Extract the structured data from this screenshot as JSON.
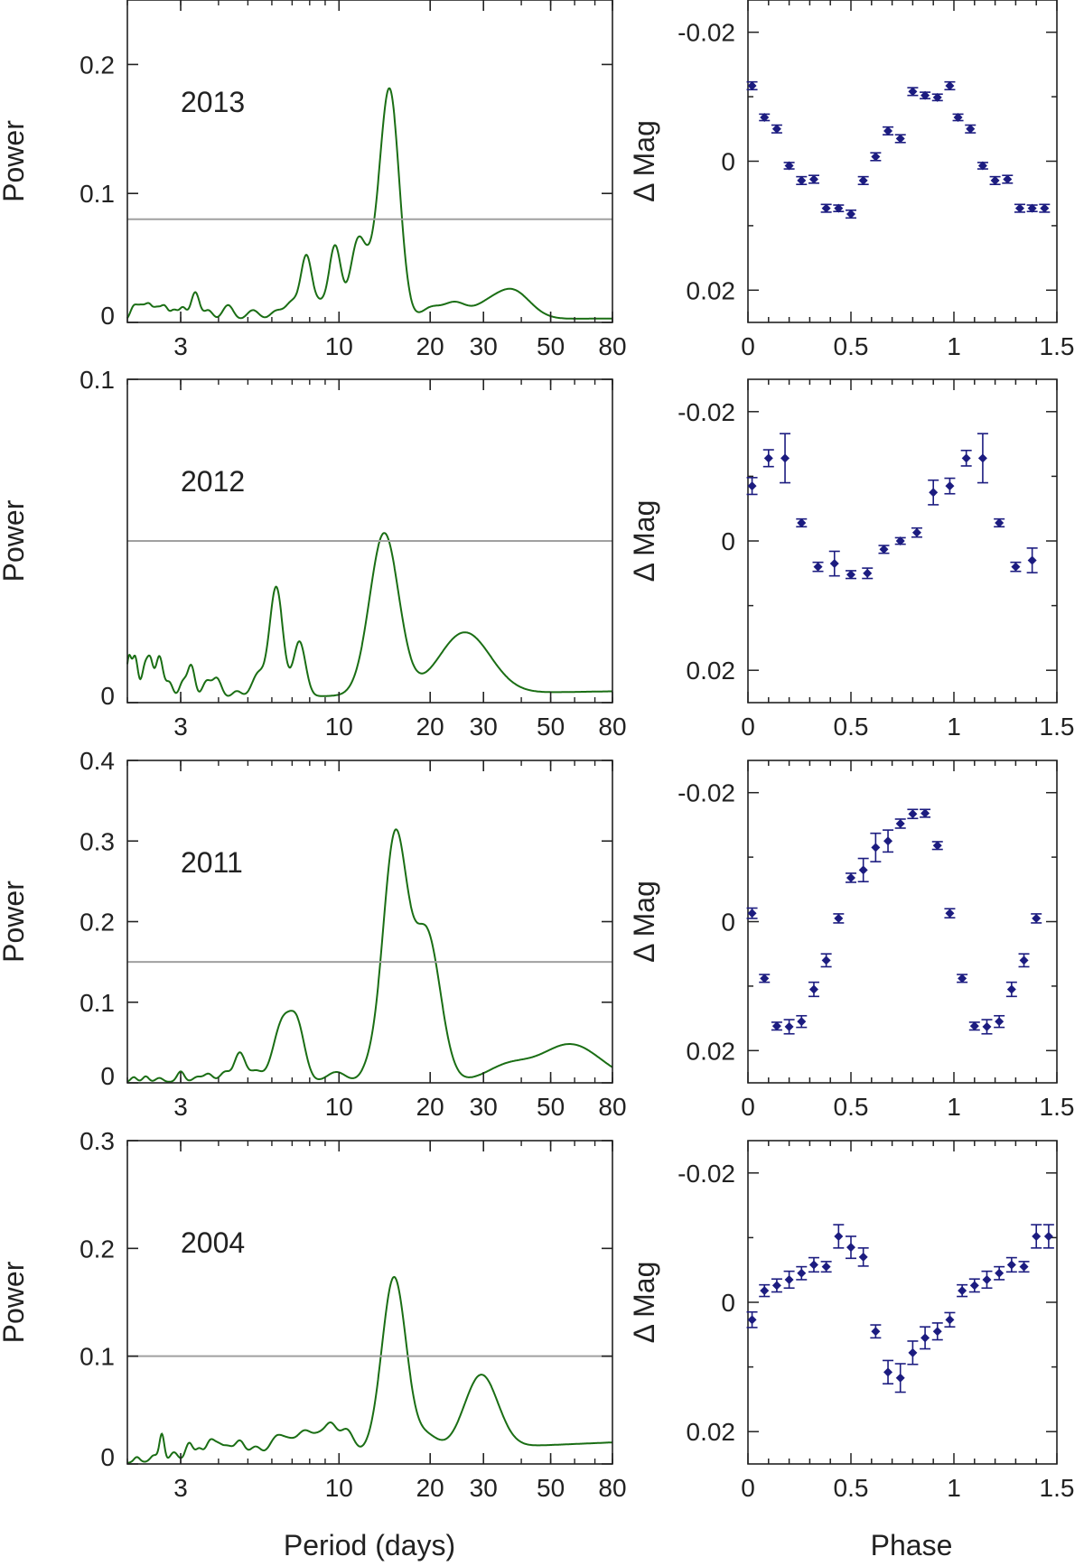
{
  "figure": {
    "common_xlabel_left": "Period (days)",
    "common_xlabel_right": "Phase",
    "colors": {
      "periodogram": "#1a6e14",
      "threshold": "#a0a0a0",
      "points": "#1c1c80",
      "axes": "#222222"
    }
  },
  "chart_data": [
    {
      "type": "line",
      "title": "2013",
      "xlabel": "",
      "ylabel": "Power",
      "xscale": "log",
      "xlim": [
        2,
        80
      ],
      "ylim": [
        0,
        0.25
      ],
      "xticks": [
        3,
        10,
        20,
        30,
        50,
        80
      ],
      "yticks": [
        0,
        0.1,
        0.2
      ],
      "ytick_labels": [
        "0",
        "0.1",
        "0.2"
      ],
      "threshold": 0.08,
      "peaks": [
        {
          "p": 2.1,
          "a": 0.011,
          "w": 0.012
        },
        {
          "p": 2.22,
          "a": 0.01,
          "w": 0.012
        },
        {
          "p": 2.35,
          "a": 0.012,
          "w": 0.012
        },
        {
          "p": 2.5,
          "a": 0.009,
          "w": 0.012
        },
        {
          "p": 2.65,
          "a": 0.011,
          "w": 0.012
        },
        {
          "p": 2.85,
          "a": 0.008,
          "w": 0.012
        },
        {
          "p": 3.05,
          "a": 0.01,
          "w": 0.012
        },
        {
          "p": 3.35,
          "a": 0.022,
          "w": 0.014
        },
        {
          "p": 3.7,
          "a": 0.008,
          "w": 0.015
        },
        {
          "p": 4.3,
          "a": 0.012,
          "w": 0.018
        },
        {
          "p": 5.2,
          "a": 0.008,
          "w": 0.02
        },
        {
          "p": 6.2,
          "a": 0.007,
          "w": 0.02
        },
        {
          "p": 7.0,
          "a": 0.014,
          "w": 0.022
        },
        {
          "p": 7.8,
          "a": 0.048,
          "w": 0.018
        },
        {
          "p": 8.6,
          "a": 0.012,
          "w": 0.02
        },
        {
          "p": 9.7,
          "a": 0.057,
          "w": 0.02
        },
        {
          "p": 11.5,
          "a": 0.055,
          "w": 0.025
        },
        {
          "p": 12.8,
          "a": 0.025,
          "w": 0.03
        },
        {
          "p": 14.7,
          "a": 0.176,
          "w": 0.032
        },
        {
          "p": 20.0,
          "a": 0.008,
          "w": 0.03
        },
        {
          "p": 24.0,
          "a": 0.013,
          "w": 0.04
        },
        {
          "p": 30.0,
          "a": 0.006,
          "w": 0.04
        },
        {
          "p": 37.0,
          "a": 0.023,
          "w": 0.06
        }
      ],
      "baseline": [
        0.001,
        0.003
      ],
      "phase_panel": {
        "type": "scatter",
        "xlabel": "",
        "ylabel": "Δ Mag",
        "xlim": [
          0,
          1.5
        ],
        "ylim": [
          0.025,
          -0.025
        ],
        "xticks": [
          0,
          0.5,
          1,
          1.5
        ],
        "yticks": [
          -0.02,
          0,
          0.02
        ],
        "ytick_labels": [
          "-0.02",
          "0",
          "0.02"
        ],
        "x": [
          0.02,
          0.08,
          0.14,
          0.2,
          0.26,
          0.32,
          0.38,
          0.44,
          0.5,
          0.56,
          0.62,
          0.68,
          0.74,
          0.8,
          0.86,
          0.92,
          0.98,
          1.02,
          1.08,
          1.14,
          1.2,
          1.26,
          1.32,
          1.38,
          1.44
        ],
        "y": [
          -0.0117,
          -0.0068,
          -0.005,
          0.0007,
          0.003,
          0.0028,
          0.0073,
          0.0073,
          0.0082,
          0.003,
          -0.0007,
          -0.0047,
          -0.0035,
          -0.0108,
          -0.0102,
          -0.0099,
          -0.0117,
          -0.0068,
          -0.005,
          0.0007,
          0.003,
          0.0028,
          0.0073,
          0.0073,
          0.0073
        ],
        "err": [
          0.0006,
          0.0005,
          0.0006,
          0.0005,
          0.0006,
          0.0006,
          0.0006,
          0.0005,
          0.0006,
          0.0006,
          0.0006,
          0.0006,
          0.0006,
          0.0006,
          0.0005,
          0.0005,
          0.0006,
          0.0005,
          0.0006,
          0.0005,
          0.0006,
          0.0006,
          0.0006,
          0.0005,
          0.0006
        ]
      }
    },
    {
      "type": "line",
      "title": "2012",
      "xlabel": "",
      "ylabel": "Power",
      "xscale": "log",
      "xlim": [
        2,
        80
      ],
      "ylim": [
        0,
        0.1
      ],
      "xticks": [
        3,
        10,
        20,
        30,
        50,
        80
      ],
      "yticks": [
        0,
        0.1
      ],
      "ytick_labels": [
        "0",
        "0.1"
      ],
      "threshold": 0.05,
      "peaks": [
        {
          "p": 2.02,
          "a": 0.012,
          "w": 0.008
        },
        {
          "p": 2.12,
          "a": 0.013,
          "w": 0.01
        },
        {
          "p": 2.28,
          "a": 0.009,
          "w": 0.01
        },
        {
          "p": 2.38,
          "a": 0.011,
          "w": 0.01
        },
        {
          "p": 2.55,
          "a": 0.013,
          "w": 0.012
        },
        {
          "p": 2.75,
          "a": 0.005,
          "w": 0.012
        },
        {
          "p": 3.05,
          "a": 0.005,
          "w": 0.012
        },
        {
          "p": 3.25,
          "a": 0.01,
          "w": 0.012
        },
        {
          "p": 3.65,
          "a": 0.005,
          "w": 0.014
        },
        {
          "p": 3.95,
          "a": 0.006,
          "w": 0.015
        },
        {
          "p": 4.6,
          "a": 0.002,
          "w": 0.015
        },
        {
          "p": 5.4,
          "a": 0.007,
          "w": 0.02
        },
        {
          "p": 6.2,
          "a": 0.034,
          "w": 0.022
        },
        {
          "p": 7.4,
          "a": 0.017,
          "w": 0.02
        },
        {
          "p": 14.1,
          "a": 0.05,
          "w": 0.048
        },
        {
          "p": 26.0,
          "a": 0.019,
          "w": 0.085
        }
      ],
      "baseline": [
        0.001,
        0.0035
      ],
      "phase_panel": {
        "type": "scatter",
        "xlabel": "",
        "ylabel": "Δ Mag",
        "xlim": [
          0,
          1.5
        ],
        "ylim": [
          0.025,
          -0.025
        ],
        "xticks": [
          0,
          0.5,
          1,
          1.5
        ],
        "yticks": [
          -0.02,
          0,
          0.02
        ],
        "ytick_labels": [
          "-0.02",
          "0",
          "0.02"
        ],
        "x": [
          0.02,
          0.1,
          0.18,
          0.26,
          0.34,
          0.42,
          0.5,
          0.58,
          0.66,
          0.74,
          0.82,
          0.9,
          0.98,
          1.06,
          1.14,
          1.22,
          1.3,
          1.38
        ],
        "y": [
          -0.0085,
          -0.0128,
          -0.0128,
          -0.0028,
          0.004,
          0.0035,
          0.0052,
          0.005,
          0.0013,
          0.0,
          -0.0013,
          -0.0075,
          -0.0085,
          -0.0128,
          -0.0128,
          -0.0028,
          0.004,
          0.003
        ],
        "err": [
          0.0013,
          0.0013,
          0.0038,
          0.0006,
          0.0007,
          0.0019,
          0.0006,
          0.0008,
          0.0006,
          0.0005,
          0.0007,
          0.0019,
          0.0012,
          0.0012,
          0.0038,
          0.0006,
          0.0007,
          0.0019
        ]
      }
    },
    {
      "type": "line",
      "title": "2011",
      "xlabel": "",
      "ylabel": "Power",
      "xscale": "log",
      "xlim": [
        2,
        80
      ],
      "ylim": [
        0,
        0.4
      ],
      "xticks": [
        3,
        10,
        20,
        30,
        50,
        80
      ],
      "yticks": [
        0,
        0.1,
        0.2,
        0.3,
        0.4
      ],
      "ytick_labels": [
        "0",
        "0.1",
        "0.2",
        "0.3",
        "0.4"
      ],
      "threshold": 0.15,
      "peaks": [
        {
          "p": 2.1,
          "a": 0.006,
          "w": 0.01
        },
        {
          "p": 2.3,
          "a": 0.007,
          "w": 0.01
        },
        {
          "p": 2.55,
          "a": 0.005,
          "w": 0.012
        },
        {
          "p": 3.0,
          "a": 0.013,
          "w": 0.012
        },
        {
          "p": 3.4,
          "a": 0.006,
          "w": 0.014
        },
        {
          "p": 3.7,
          "a": 0.01,
          "w": 0.015
        },
        {
          "p": 4.2,
          "a": 0.012,
          "w": 0.016
        },
        {
          "p": 4.7,
          "a": 0.036,
          "w": 0.018
        },
        {
          "p": 5.3,
          "a": 0.013,
          "w": 0.02
        },
        {
          "p": 6.5,
          "a": 0.072,
          "w": 0.03
        },
        {
          "p": 7.3,
          "a": 0.062,
          "w": 0.025
        },
        {
          "p": 9.8,
          "a": 0.012,
          "w": 0.03
        },
        {
          "p": 12.5,
          "a": 0.01,
          "w": 0.025
        },
        {
          "p": 15.3,
          "a": 0.3,
          "w": 0.04
        },
        {
          "p": 19.5,
          "a": 0.182,
          "w": 0.045
        },
        {
          "p": 36.0,
          "a": 0.018,
          "w": 0.07
        },
        {
          "p": 58.0,
          "a": 0.046,
          "w": 0.1
        }
      ],
      "baseline": [
        0.001,
        0.002
      ],
      "phase_panel": {
        "type": "scatter",
        "xlabel": "",
        "ylabel": "Δ Mag",
        "xlim": [
          0,
          1.5
        ],
        "ylim": [
          0.025,
          -0.025
        ],
        "xticks": [
          0,
          0.5,
          1,
          1.5
        ],
        "yticks": [
          -0.02,
          0,
          0.02
        ],
        "ytick_labels": [
          "-0.02",
          "0",
          "0.02"
        ],
        "x": [
          0.02,
          0.08,
          0.14,
          0.2,
          0.26,
          0.32,
          0.38,
          0.44,
          0.5,
          0.56,
          0.62,
          0.68,
          0.74,
          0.8,
          0.86,
          0.92,
          0.98,
          1.04,
          1.1,
          1.16,
          1.22,
          1.28,
          1.34,
          1.4
        ],
        "y": [
          -0.0013,
          0.0088,
          0.0162,
          0.0163,
          0.0155,
          0.0105,
          0.006,
          -0.0005,
          -0.0068,
          -0.008,
          -0.0115,
          -0.0125,
          -0.0152,
          -0.0167,
          -0.0168,
          -0.0118,
          -0.0013,
          0.0088,
          0.0162,
          0.0163,
          0.0155,
          0.0105,
          0.006,
          -0.0005
        ],
        "err": [
          0.0008,
          0.0006,
          0.0006,
          0.0011,
          0.0009,
          0.0011,
          0.001,
          0.0007,
          0.0007,
          0.0018,
          0.0022,
          0.0017,
          0.0007,
          0.0007,
          0.0006,
          0.0006,
          0.0007,
          0.0006,
          0.0006,
          0.0011,
          0.0009,
          0.0011,
          0.001,
          0.0007
        ]
      }
    },
    {
      "type": "line",
      "title": "2004",
      "xlabel": "Period (days)",
      "ylabel": "Power",
      "xscale": "log",
      "xlim": [
        2,
        80
      ],
      "ylim": [
        0,
        0.3
      ],
      "xticks": [
        3,
        10,
        20,
        30,
        50,
        80
      ],
      "yticks": [
        0,
        0.1,
        0.2,
        0.3
      ],
      "ytick_labels": [
        "0",
        "0.1",
        "0.2",
        "0.3"
      ],
      "threshold": 0.1,
      "peaks": [
        {
          "p": 2.15,
          "a": 0.005,
          "w": 0.01
        },
        {
          "p": 2.45,
          "a": 0.006,
          "w": 0.012
        },
        {
          "p": 2.6,
          "a": 0.025,
          "w": 0.008
        },
        {
          "p": 2.85,
          "a": 0.008,
          "w": 0.012
        },
        {
          "p": 3.2,
          "a": 0.016,
          "w": 0.012
        },
        {
          "p": 3.45,
          "a": 0.01,
          "w": 0.012
        },
        {
          "p": 3.75,
          "a": 0.016,
          "w": 0.014
        },
        {
          "p": 4.0,
          "a": 0.012,
          "w": 0.015
        },
        {
          "p": 4.3,
          "a": 0.01,
          "w": 0.015
        },
        {
          "p": 4.7,
          "a": 0.016,
          "w": 0.016
        },
        {
          "p": 5.3,
          "a": 0.01,
          "w": 0.018
        },
        {
          "p": 6.2,
          "a": 0.017,
          "w": 0.022
        },
        {
          "p": 6.8,
          "a": 0.012,
          "w": 0.022
        },
        {
          "p": 7.7,
          "a": 0.022,
          "w": 0.025
        },
        {
          "p": 8.6,
          "a": 0.014,
          "w": 0.02
        },
        {
          "p": 9.4,
          "a": 0.026,
          "w": 0.02
        },
        {
          "p": 10.6,
          "a": 0.022,
          "w": 0.022
        },
        {
          "p": 15.2,
          "a": 0.162,
          "w": 0.04
        },
        {
          "p": 19.5,
          "a": 0.013,
          "w": 0.035
        },
        {
          "p": 29.5,
          "a": 0.068,
          "w": 0.055
        }
      ],
      "baseline": [
        0.001,
        0.02
      ],
      "phase_panel": {
        "type": "scatter",
        "xlabel": "Phase",
        "ylabel": "Δ Mag",
        "xlim": [
          0,
          1.5
        ],
        "ylim": [
          0.025,
          -0.025
        ],
        "xticks": [
          0,
          0.5,
          1,
          1.5
        ],
        "yticks": [
          -0.02,
          0,
          0.02
        ],
        "ytick_labels": [
          "-0.02",
          "0",
          "0.02"
        ],
        "x": [
          0.02,
          0.08,
          0.14,
          0.2,
          0.26,
          0.32,
          0.38,
          0.44,
          0.5,
          0.56,
          0.62,
          0.68,
          0.74,
          0.8,
          0.86,
          0.92,
          0.98,
          1.04,
          1.1,
          1.16,
          1.22,
          1.28,
          1.34,
          1.4,
          1.46
        ],
        "y": [
          0.0027,
          -0.0018,
          -0.0026,
          -0.0035,
          -0.0045,
          -0.0058,
          -0.0055,
          -0.0102,
          -0.0085,
          -0.007,
          0.0045,
          0.0108,
          0.0117,
          0.0078,
          0.0055,
          0.0045,
          0.0027,
          -0.0018,
          -0.0026,
          -0.0035,
          -0.0045,
          -0.0058,
          -0.0055,
          -0.0102,
          -0.0102
        ],
        "err": [
          0.0012,
          0.0009,
          0.001,
          0.0013,
          0.001,
          0.0011,
          0.0008,
          0.0018,
          0.0017,
          0.0014,
          0.001,
          0.0018,
          0.0022,
          0.0018,
          0.0017,
          0.0013,
          0.0011,
          0.0009,
          0.001,
          0.0013,
          0.001,
          0.0011,
          0.0008,
          0.0018,
          0.0018
        ]
      }
    }
  ]
}
